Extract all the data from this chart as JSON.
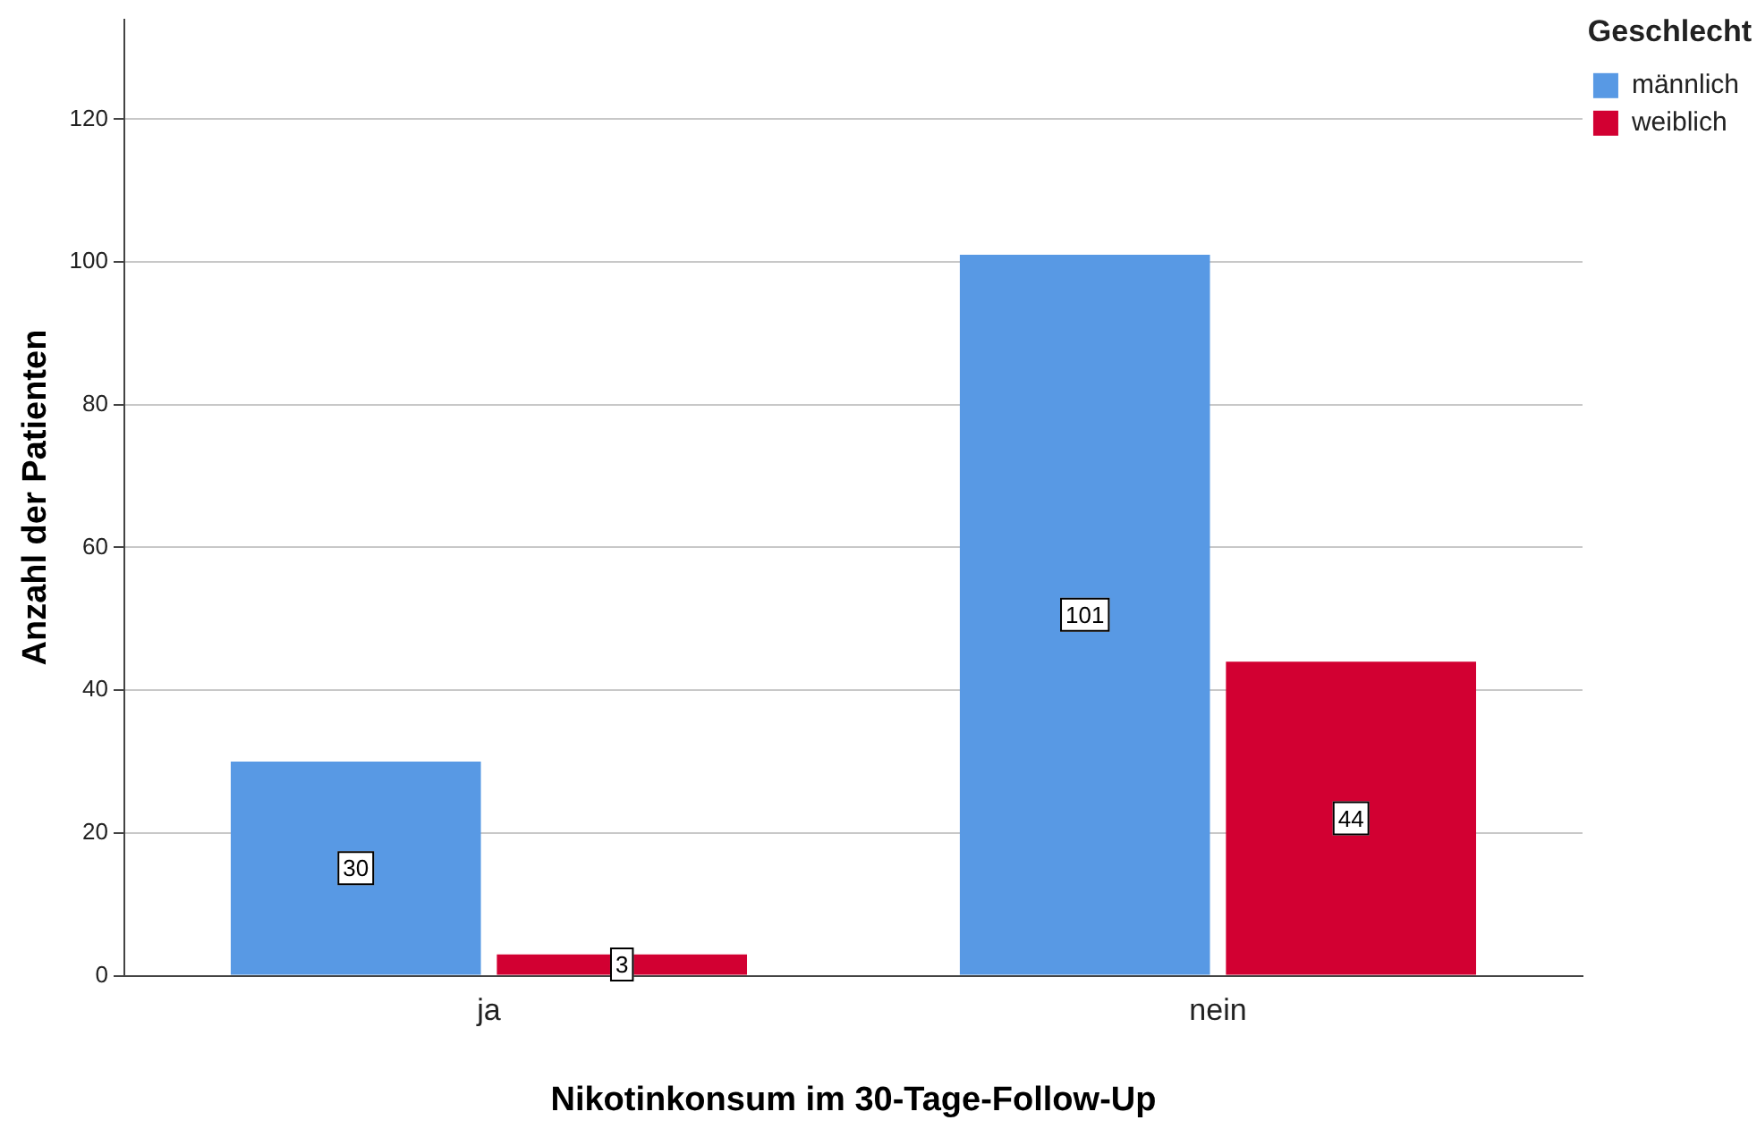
{
  "chart_data": {
    "type": "bar",
    "xlabel": "Nikotinkonsum im 30-Tage-Follow-Up",
    "ylabel": "Anzahl der Patienten",
    "legend_title": "Geschlecht",
    "categories": [
      "ja",
      "nein"
    ],
    "series": [
      {
        "name": "männlich",
        "color": "#5899e4",
        "values": [
          30,
          101
        ]
      },
      {
        "name": "weiblich",
        "color": "#d20032",
        "values": [
          3,
          44
        ]
      }
    ],
    "ylim": [
      0,
      134
    ],
    "yticks": [
      0,
      20,
      40,
      60,
      80,
      100,
      120
    ],
    "grid": "y",
    "legend": "top right",
    "data_labels": true
  }
}
